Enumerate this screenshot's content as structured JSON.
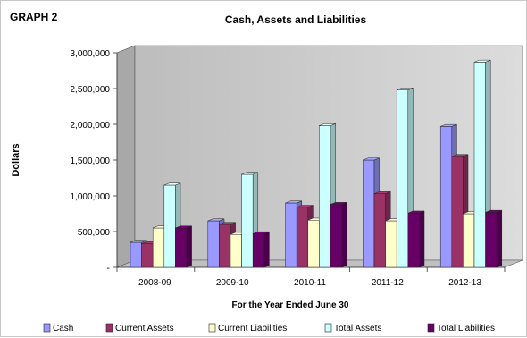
{
  "chart_data": {
    "type": "bar",
    "label": "GRAPH 2",
    "title": "Cash, Assets and  Liabilities",
    "xlabel": "For the Year Ended June 30",
    "ylabel": "Dollars",
    "categories": [
      "2008-09",
      "2009-10",
      "2010-11",
      "2011-12",
      "2012-13"
    ],
    "yticks": [
      "-",
      "500,000",
      "1,000,000",
      "1,500,000",
      "2,000,000",
      "2,500,000",
      "3,000,000"
    ],
    "ylim": [
      0,
      3000000
    ],
    "grid": false,
    "legend_position": "bottom",
    "series": [
      {
        "name": "Cash",
        "color": "#9999ff",
        "values": [
          350000,
          650000,
          900000,
          1500000,
          1970000
        ]
      },
      {
        "name": "Current Assets",
        "color": "#993366",
        "values": [
          330000,
          600000,
          840000,
          1030000,
          1550000
        ]
      },
      {
        "name": "Current Liabilities",
        "color": "#ffffcc",
        "values": [
          550000,
          460000,
          660000,
          650000,
          750000
        ]
      },
      {
        "name": "Total Assets",
        "color": "#ccffff",
        "values": [
          1150000,
          1300000,
          1980000,
          2480000,
          2870000
        ]
      },
      {
        "name": "Total Liabilities",
        "color": "#660066",
        "values": [
          550000,
          470000,
          880000,
          760000,
          770000
        ]
      }
    ]
  }
}
